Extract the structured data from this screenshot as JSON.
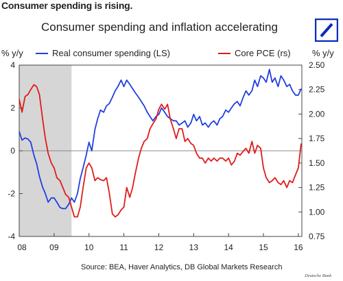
{
  "headline": "Consumer spending is rising.",
  "logo_icon": "deutsche-bank-logo",
  "footer": {
    "source": "Source: BEA, Haver Analytics, DB Global Markets Research",
    "brand": "Deutsche Bank"
  },
  "colors": {
    "blue": "#1f3fe0",
    "red": "#e01b1b",
    "recession": "#d6d6d6",
    "logo": "#0a2bbf",
    "zero_line": "#888888"
  },
  "chart_data": {
    "type": "line",
    "title": "Consumer spending and inflation accelerating",
    "left_axis_label": "% y/y",
    "right_axis_label": "% y/y",
    "left_ylim": [
      -4,
      4
    ],
    "left_ticks": [
      -4,
      -2,
      0,
      2,
      4
    ],
    "right_ylim": [
      0.75,
      2.5
    ],
    "right_ticks": [
      "0.75",
      "1.00",
      "1.25",
      "1.50",
      "1.75",
      "2.00",
      "2.25",
      "2.50"
    ],
    "x_ticks": [
      "08",
      "09",
      "10",
      "11",
      "12",
      "13",
      "14",
      "15",
      "16"
    ],
    "xlim": [
      2008.0,
      2016.1
    ],
    "grid": false,
    "legend_placement": "top",
    "shaded_recession": [
      2008.0,
      2009.5
    ],
    "series": [
      {
        "name": "Real consumer spending (LS)",
        "axis": "left",
        "color": "#1f3fe0",
        "points": [
          [
            2008.0,
            0.9
          ],
          [
            2008.08,
            0.5
          ],
          [
            2008.17,
            0.6
          ],
          [
            2008.25,
            0.55
          ],
          [
            2008.33,
            0.4
          ],
          [
            2008.42,
            -0.2
          ],
          [
            2008.5,
            -0.6
          ],
          [
            2008.58,
            -1.2
          ],
          [
            2008.67,
            -1.7
          ],
          [
            2008.75,
            -2.0
          ],
          [
            2008.83,
            -2.4
          ],
          [
            2008.92,
            -2.2
          ],
          [
            2009.0,
            -2.2
          ],
          [
            2009.08,
            -2.4
          ],
          [
            2009.17,
            -2.65
          ],
          [
            2009.25,
            -2.7
          ],
          [
            2009.33,
            -2.7
          ],
          [
            2009.42,
            -2.5
          ],
          [
            2009.5,
            -2.2
          ],
          [
            2009.58,
            -2.4
          ],
          [
            2009.67,
            -2.0
          ],
          [
            2009.75,
            -1.3
          ],
          [
            2009.83,
            -0.8
          ],
          [
            2009.92,
            -0.2
          ],
          [
            2010.0,
            0.4
          ],
          [
            2010.08,
            0.0
          ],
          [
            2010.17,
            1.0
          ],
          [
            2010.25,
            1.5
          ],
          [
            2010.33,
            1.9
          ],
          [
            2010.42,
            1.8
          ],
          [
            2010.5,
            2.1
          ],
          [
            2010.58,
            2.2
          ],
          [
            2010.67,
            2.5
          ],
          [
            2010.75,
            2.8
          ],
          [
            2010.83,
            3.0
          ],
          [
            2010.92,
            3.3
          ],
          [
            2011.0,
            3.0
          ],
          [
            2011.08,
            3.3
          ],
          [
            2011.17,
            3.1
          ],
          [
            2011.25,
            2.9
          ],
          [
            2011.33,
            2.7
          ],
          [
            2011.42,
            2.5
          ],
          [
            2011.5,
            2.3
          ],
          [
            2011.58,
            2.1
          ],
          [
            2011.67,
            1.8
          ],
          [
            2011.75,
            1.6
          ],
          [
            2011.83,
            1.4
          ],
          [
            2011.92,
            1.6
          ],
          [
            2012.0,
            1.7
          ],
          [
            2012.08,
            2.0
          ],
          [
            2012.17,
            1.8
          ],
          [
            2012.25,
            1.6
          ],
          [
            2012.33,
            1.5
          ],
          [
            2012.42,
            1.4
          ],
          [
            2012.5,
            1.4
          ],
          [
            2012.58,
            1.2
          ],
          [
            2012.67,
            1.3
          ],
          [
            2012.75,
            1.4
          ],
          [
            2012.83,
            1.1
          ],
          [
            2012.92,
            1.3
          ],
          [
            2013.0,
            1.7
          ],
          [
            2013.08,
            1.4
          ],
          [
            2013.17,
            1.6
          ],
          [
            2013.25,
            1.2
          ],
          [
            2013.33,
            1.3
          ],
          [
            2013.42,
            1.1
          ],
          [
            2013.5,
            1.3
          ],
          [
            2013.58,
            1.4
          ],
          [
            2013.67,
            1.2
          ],
          [
            2013.75,
            1.5
          ],
          [
            2013.83,
            1.6
          ],
          [
            2013.92,
            1.9
          ],
          [
            2014.0,
            1.8
          ],
          [
            2014.08,
            2.0
          ],
          [
            2014.17,
            2.2
          ],
          [
            2014.25,
            2.3
          ],
          [
            2014.33,
            2.1
          ],
          [
            2014.42,
            2.5
          ],
          [
            2014.5,
            2.8
          ],
          [
            2014.58,
            2.6
          ],
          [
            2014.67,
            2.8
          ],
          [
            2014.75,
            3.3
          ],
          [
            2014.83,
            3.0
          ],
          [
            2014.92,
            3.5
          ],
          [
            2015.0,
            3.4
          ],
          [
            2015.08,
            3.2
          ],
          [
            2015.17,
            3.8
          ],
          [
            2015.25,
            3.2
          ],
          [
            2015.33,
            3.4
          ],
          [
            2015.42,
            3.0
          ],
          [
            2015.5,
            3.5
          ],
          [
            2015.58,
            3.3
          ],
          [
            2015.67,
            3.0
          ],
          [
            2015.75,
            3.1
          ],
          [
            2015.83,
            2.8
          ],
          [
            2015.92,
            2.6
          ],
          [
            2016.0,
            2.6
          ],
          [
            2016.08,
            2.9
          ]
        ]
      },
      {
        "name": "Core PCE (rs)",
        "axis": "right",
        "color": "#e01b1b",
        "points": [
          [
            2008.0,
            2.15
          ],
          [
            2008.08,
            2.02
          ],
          [
            2008.17,
            2.18
          ],
          [
            2008.25,
            2.2
          ],
          [
            2008.33,
            2.25
          ],
          [
            2008.42,
            2.3
          ],
          [
            2008.5,
            2.28
          ],
          [
            2008.58,
            2.2
          ],
          [
            2008.67,
            1.95
          ],
          [
            2008.75,
            1.75
          ],
          [
            2008.83,
            1.6
          ],
          [
            2008.92,
            1.5
          ],
          [
            2009.0,
            1.45
          ],
          [
            2009.08,
            1.35
          ],
          [
            2009.17,
            1.32
          ],
          [
            2009.25,
            1.25
          ],
          [
            2009.33,
            1.18
          ],
          [
            2009.42,
            1.15
          ],
          [
            2009.5,
            1.05
          ],
          [
            2009.58,
            0.95
          ],
          [
            2009.67,
            0.95
          ],
          [
            2009.75,
            1.05
          ],
          [
            2009.83,
            1.25
          ],
          [
            2009.92,
            1.45
          ],
          [
            2010.0,
            1.5
          ],
          [
            2010.08,
            1.45
          ],
          [
            2010.17,
            1.32
          ],
          [
            2010.25,
            1.35
          ],
          [
            2010.33,
            1.33
          ],
          [
            2010.42,
            1.32
          ],
          [
            2010.5,
            1.35
          ],
          [
            2010.58,
            1.2
          ],
          [
            2010.67,
            0.98
          ],
          [
            2010.75,
            0.95
          ],
          [
            2010.83,
            0.97
          ],
          [
            2010.92,
            1.02
          ],
          [
            2011.0,
            1.05
          ],
          [
            2011.08,
            1.25
          ],
          [
            2011.17,
            1.15
          ],
          [
            2011.25,
            1.25
          ],
          [
            2011.33,
            1.4
          ],
          [
            2011.42,
            1.55
          ],
          [
            2011.5,
            1.65
          ],
          [
            2011.58,
            1.72
          ],
          [
            2011.67,
            1.75
          ],
          [
            2011.75,
            1.85
          ],
          [
            2011.83,
            1.9
          ],
          [
            2011.92,
            1.95
          ],
          [
            2012.0,
            2.05
          ],
          [
            2012.08,
            2.1
          ],
          [
            2012.17,
            2.05
          ],
          [
            2012.25,
            2.1
          ],
          [
            2012.33,
            1.95
          ],
          [
            2012.42,
            1.85
          ],
          [
            2012.5,
            1.75
          ],
          [
            2012.58,
            1.85
          ],
          [
            2012.67,
            1.85
          ],
          [
            2012.75,
            1.72
          ],
          [
            2012.83,
            1.75
          ],
          [
            2012.92,
            1.7
          ],
          [
            2013.0,
            1.68
          ],
          [
            2013.08,
            1.6
          ],
          [
            2013.17,
            1.55
          ],
          [
            2013.25,
            1.55
          ],
          [
            2013.33,
            1.5
          ],
          [
            2013.42,
            1.55
          ],
          [
            2013.5,
            1.52
          ],
          [
            2013.58,
            1.55
          ],
          [
            2013.67,
            1.52
          ],
          [
            2013.75,
            1.55
          ],
          [
            2013.83,
            1.55
          ],
          [
            2013.92,
            1.52
          ],
          [
            2014.0,
            1.55
          ],
          [
            2014.08,
            1.48
          ],
          [
            2014.17,
            1.52
          ],
          [
            2014.25,
            1.6
          ],
          [
            2014.33,
            1.58
          ],
          [
            2014.42,
            1.62
          ],
          [
            2014.5,
            1.65
          ],
          [
            2014.58,
            1.6
          ],
          [
            2014.67,
            1.72
          ],
          [
            2014.75,
            1.6
          ],
          [
            2014.83,
            1.68
          ],
          [
            2014.92,
            1.65
          ],
          [
            2015.0,
            1.45
          ],
          [
            2015.08,
            1.35
          ],
          [
            2015.17,
            1.3
          ],
          [
            2015.25,
            1.32
          ],
          [
            2015.33,
            1.35
          ],
          [
            2015.42,
            1.3
          ],
          [
            2015.5,
            1.28
          ],
          [
            2015.58,
            1.32
          ],
          [
            2015.67,
            1.25
          ],
          [
            2015.75,
            1.32
          ],
          [
            2015.83,
            1.3
          ],
          [
            2015.92,
            1.38
          ],
          [
            2016.0,
            1.45
          ],
          [
            2016.08,
            1.7
          ]
        ]
      }
    ]
  }
}
